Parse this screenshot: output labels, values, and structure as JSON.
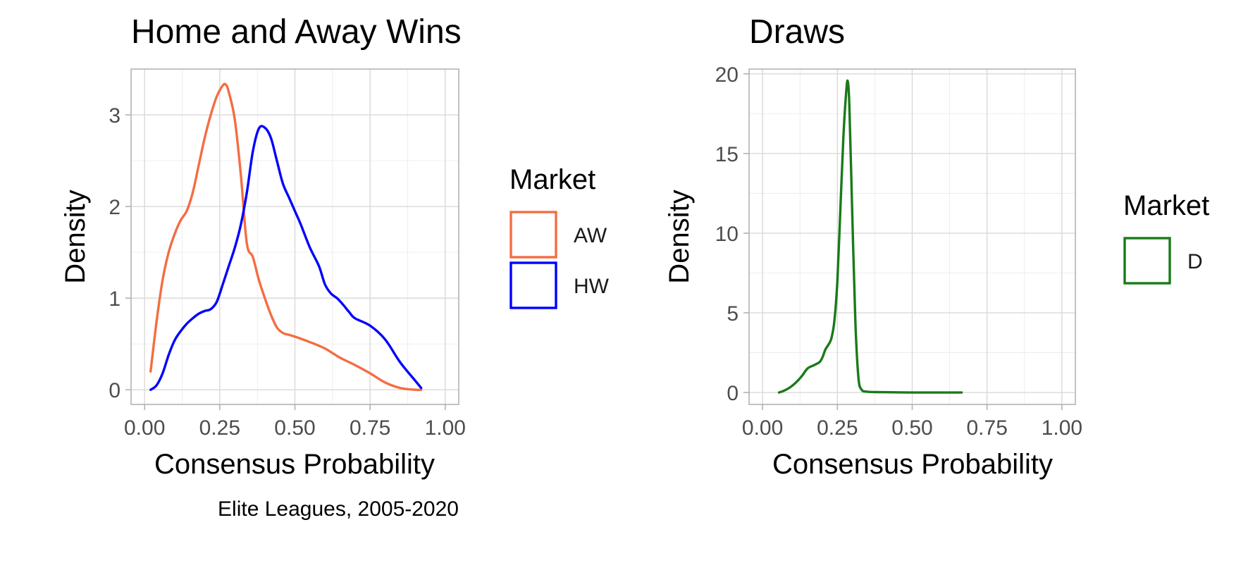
{
  "caption": "Elite Leagues, 2005-2020",
  "chart_data": [
    {
      "type": "line",
      "title": "Home and Away Wins",
      "xlabel": "Consensus Probability",
      "ylabel": "Density",
      "xlim": [
        -0.045,
        1.045
      ],
      "ylim": [
        -0.16,
        3.5
      ],
      "xticks": [
        0.0,
        0.25,
        0.5,
        0.75,
        1.0
      ],
      "xtick_labels": [
        "0.00",
        "0.25",
        "0.50",
        "0.75",
        "1.00"
      ],
      "yticks": [
        0,
        1,
        2,
        3
      ],
      "ytick_labels": [
        "0",
        "1",
        "2",
        "3"
      ],
      "grid": true,
      "legend": {
        "title": "Market",
        "position": "right"
      },
      "series": [
        {
          "name": "AW",
          "color": "#f46d43",
          "x": [
            0.02,
            0.04,
            0.06,
            0.08,
            0.1,
            0.12,
            0.14,
            0.16,
            0.18,
            0.2,
            0.22,
            0.24,
            0.26,
            0.27,
            0.28,
            0.3,
            0.32,
            0.34,
            0.36,
            0.38,
            0.4,
            0.42,
            0.44,
            0.46,
            0.48,
            0.5,
            0.55,
            0.6,
            0.65,
            0.7,
            0.75,
            0.8,
            0.85,
            0.9,
            0.92
          ],
          "y": [
            0.2,
            0.75,
            1.2,
            1.5,
            1.7,
            1.85,
            1.95,
            2.15,
            2.45,
            2.75,
            3.0,
            3.2,
            3.32,
            3.33,
            3.25,
            2.95,
            2.35,
            1.6,
            1.45,
            1.2,
            1.0,
            0.82,
            0.68,
            0.62,
            0.6,
            0.58,
            0.52,
            0.45,
            0.35,
            0.27,
            0.18,
            0.08,
            0.02,
            0.0,
            0.0
          ]
        },
        {
          "name": "HW",
          "color": "#0000ff",
          "x": [
            0.02,
            0.04,
            0.06,
            0.08,
            0.1,
            0.12,
            0.14,
            0.16,
            0.18,
            0.2,
            0.22,
            0.24,
            0.26,
            0.28,
            0.3,
            0.32,
            0.34,
            0.36,
            0.38,
            0.4,
            0.42,
            0.44,
            0.46,
            0.48,
            0.5,
            0.52,
            0.55,
            0.58,
            0.6,
            0.62,
            0.64,
            0.66,
            0.68,
            0.7,
            0.75,
            0.8,
            0.85,
            0.9,
            0.92
          ],
          "y": [
            0.0,
            0.05,
            0.18,
            0.38,
            0.54,
            0.64,
            0.72,
            0.78,
            0.83,
            0.86,
            0.88,
            0.96,
            1.15,
            1.35,
            1.55,
            1.8,
            2.15,
            2.6,
            2.85,
            2.86,
            2.75,
            2.5,
            2.25,
            2.1,
            1.95,
            1.8,
            1.55,
            1.35,
            1.15,
            1.05,
            1.0,
            0.93,
            0.85,
            0.78,
            0.7,
            0.55,
            0.3,
            0.1,
            0.02
          ]
        }
      ]
    },
    {
      "type": "line",
      "title": "Draws",
      "xlabel": "Consensus Probability",
      "ylabel": "Density",
      "xlim": [
        -0.045,
        1.045
      ],
      "ylim": [
        -0.75,
        20.3
      ],
      "xticks": [
        0.0,
        0.25,
        0.5,
        0.75,
        1.0
      ],
      "xtick_labels": [
        "0.00",
        "0.25",
        "0.50",
        "0.75",
        "1.00"
      ],
      "yticks": [
        0,
        5,
        10,
        15,
        20
      ],
      "ytick_labels": [
        "0",
        "5",
        "10",
        "15",
        "20"
      ],
      "grid": true,
      "legend": {
        "title": "Market",
        "position": "right"
      },
      "series": [
        {
          "name": "D",
          "color": "#1a7a1a",
          "x": [
            0.055,
            0.07,
            0.09,
            0.11,
            0.13,
            0.15,
            0.17,
            0.19,
            0.2,
            0.21,
            0.22,
            0.23,
            0.24,
            0.25,
            0.26,
            0.27,
            0.28,
            0.285,
            0.29,
            0.3,
            0.31,
            0.32,
            0.33,
            0.35,
            0.4,
            0.5,
            0.6,
            0.665
          ],
          "y": [
            0.0,
            0.1,
            0.3,
            0.6,
            1.0,
            1.5,
            1.7,
            1.9,
            2.2,
            2.7,
            3.0,
            3.4,
            4.5,
            7.0,
            11.5,
            16.0,
            19.0,
            19.5,
            18.0,
            11.0,
            4.5,
            1.0,
            0.2,
            0.05,
            0.02,
            0.0,
            0.0,
            0.0
          ]
        }
      ]
    }
  ]
}
